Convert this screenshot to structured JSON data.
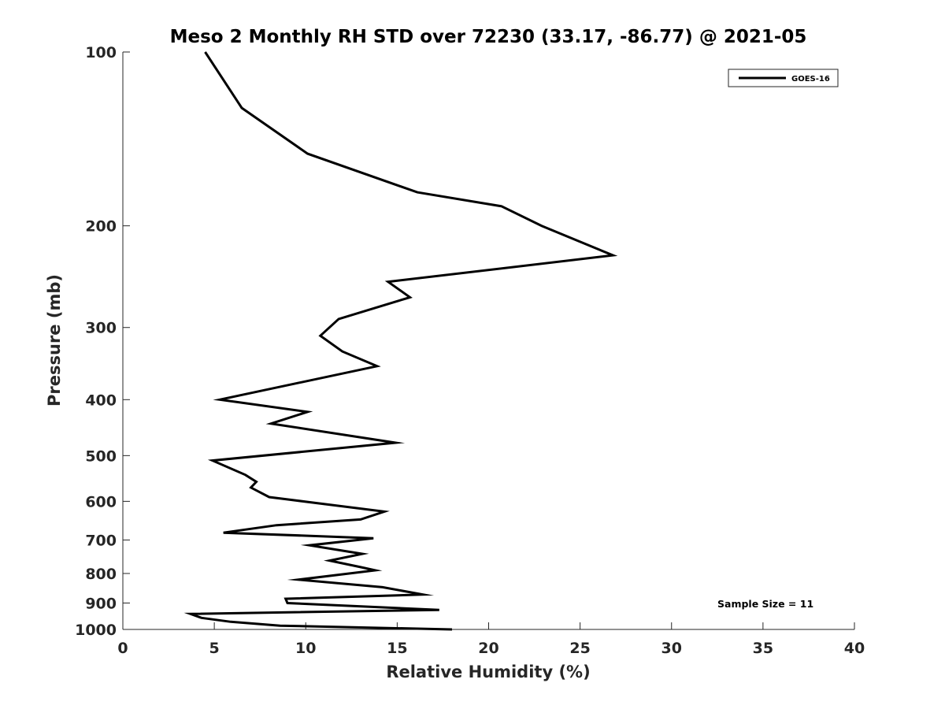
{
  "chart_data": {
    "type": "line",
    "title": "Meso 2 Monthly RH STD over 72230 (33.17, -86.77) @ 2021-05",
    "xlabel": "Relative Humidity (%)",
    "ylabel": "Pressure (mb)",
    "xlim": [
      0,
      40
    ],
    "ylim": [
      1000,
      100
    ],
    "yscale": "log",
    "y_reversed": true,
    "xticks": [
      0,
      5,
      10,
      15,
      20,
      25,
      30,
      35,
      40
    ],
    "yticks": [
      100,
      200,
      300,
      400,
      500,
      600,
      700,
      800,
      900,
      1000
    ],
    "grid": false,
    "legend_position": "top-right",
    "annotation": "Sample Size = 11",
    "series": [
      {
        "name": "GOES-16",
        "color": "#000000",
        "x": [
          4.5,
          6.5,
          10.1,
          16.1,
          20.7,
          22.9,
          26.8,
          14.5,
          15.7,
          11.8,
          10.8,
          12.0,
          13.9,
          5.3,
          10.1,
          8.1,
          14.9,
          4.9,
          6.7,
          7.3,
          7.0,
          8.0,
          14.3,
          13.0,
          8.4,
          5.5,
          13.7,
          10.2,
          13.1,
          11.3,
          13.0,
          13.8,
          9.6,
          14.2,
          16.4,
          8.9,
          9.0,
          17.3,
          3.7,
          4.3,
          5.9,
          8.6,
          18.0
        ],
        "y": [
          100,
          125,
          150,
          175,
          185,
          200,
          225,
          250,
          266,
          290,
          310,
          330,
          350,
          400,
          420,
          440,
          475,
          510,
          540,
          555,
          568,
          590,
          625,
          645,
          660,
          680,
          695,
          715,
          740,
          760,
          780,
          790,
          820,
          845,
          870,
          885,
          900,
          925,
          940,
          955,
          970,
          985,
          1000
        ]
      }
    ]
  }
}
